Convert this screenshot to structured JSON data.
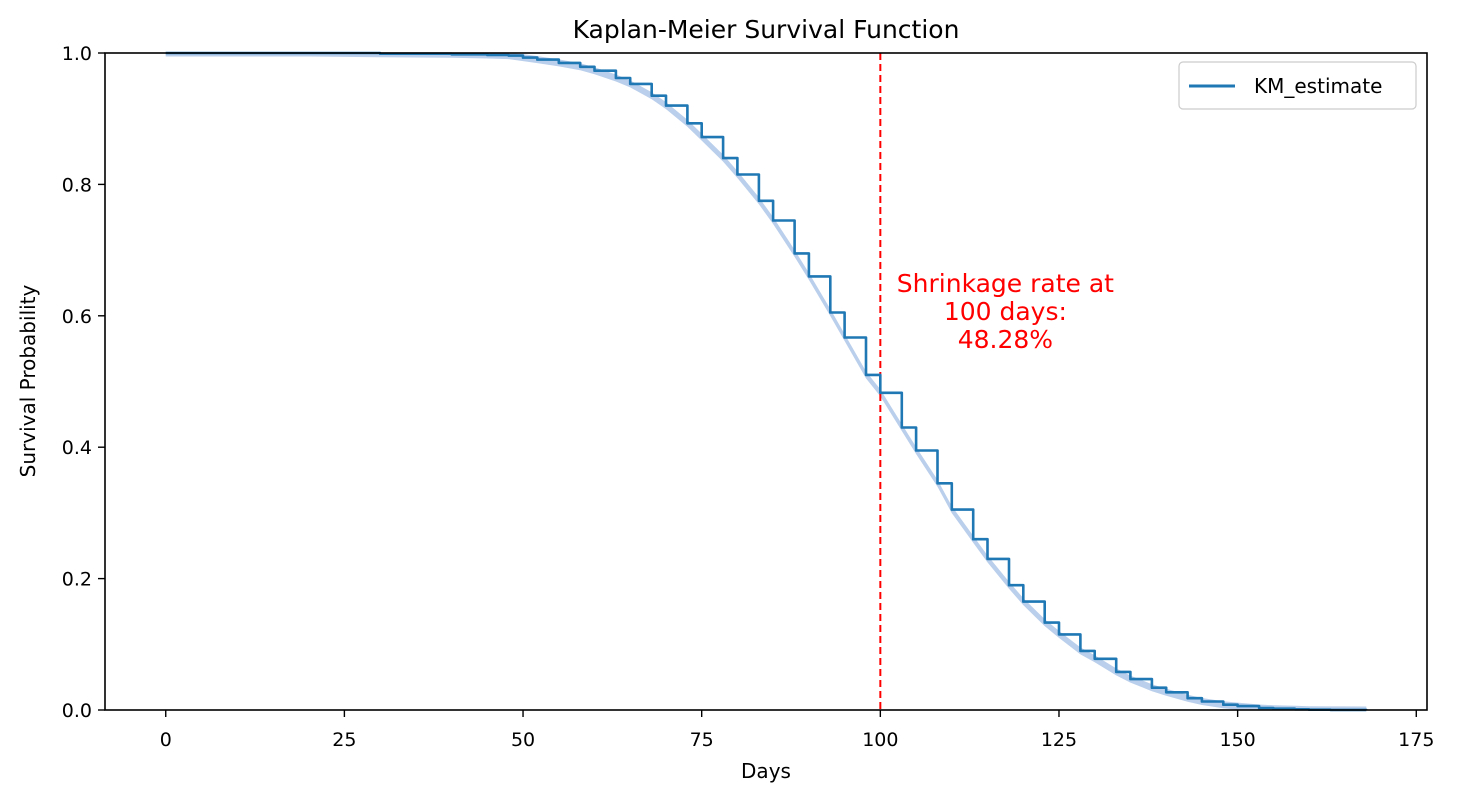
{
  "chart_data": {
    "type": "line",
    "title": "Kaplan-Meier Survival Function",
    "xlabel": "Days",
    "ylabel": "Survival Probability",
    "xlim": [
      -8.5,
      176.5
    ],
    "ylim": [
      0.0,
      1.0
    ],
    "xticks": [
      0,
      25,
      50,
      75,
      100,
      125,
      150,
      175
    ],
    "yticks": [
      0.0,
      0.2,
      0.4,
      0.6,
      0.8,
      1.0
    ],
    "xtick_labels": [
      "0",
      "25",
      "50",
      "75",
      "100",
      "125",
      "150",
      "175"
    ],
    "ytick_labels": [
      "0.0",
      "0.2",
      "0.4",
      "0.6",
      "0.8",
      "1.0"
    ],
    "grid": false,
    "legend_position": "top-right",
    "series": [
      {
        "name": "KM_estimate",
        "color": "#1f77b4",
        "ci_color": "#aec7e8",
        "x": [
          0,
          10,
          20,
          30,
          40,
          45,
          48,
          50,
          52,
          55,
          58,
          60,
          63,
          65,
          68,
          70,
          73,
          75,
          78,
          80,
          83,
          85,
          88,
          90,
          93,
          95,
          98,
          100,
          103,
          105,
          108,
          110,
          113,
          115,
          118,
          120,
          123,
          125,
          128,
          130,
          133,
          135,
          138,
          140,
          143,
          145,
          148,
          150,
          153,
          155,
          158,
          160,
          163,
          165,
          168
        ],
        "y": [
          1.0,
          1.0,
          1.0,
          0.999,
          0.998,
          0.997,
          0.996,
          0.993,
          0.99,
          0.985,
          0.979,
          0.973,
          0.962,
          0.953,
          0.935,
          0.92,
          0.893,
          0.872,
          0.84,
          0.815,
          0.775,
          0.745,
          0.695,
          0.66,
          0.605,
          0.567,
          0.51,
          0.4828,
          0.43,
          0.395,
          0.345,
          0.305,
          0.26,
          0.23,
          0.19,
          0.165,
          0.133,
          0.115,
          0.09,
          0.078,
          0.058,
          0.047,
          0.034,
          0.027,
          0.018,
          0.013,
          0.008,
          0.006,
          0.003,
          0.002,
          0.001,
          0.0005,
          0.0002,
          0.0001,
          0.0
        ]
      }
    ],
    "reference_line": {
      "x": 100,
      "color": "#ff0000",
      "style": "dashed"
    },
    "annotation": {
      "lines": [
        "Shrinkage rate at",
        "100 days:",
        "48.28%"
      ],
      "x": 117.5,
      "y": 0.58,
      "color": "#ff0000"
    }
  }
}
